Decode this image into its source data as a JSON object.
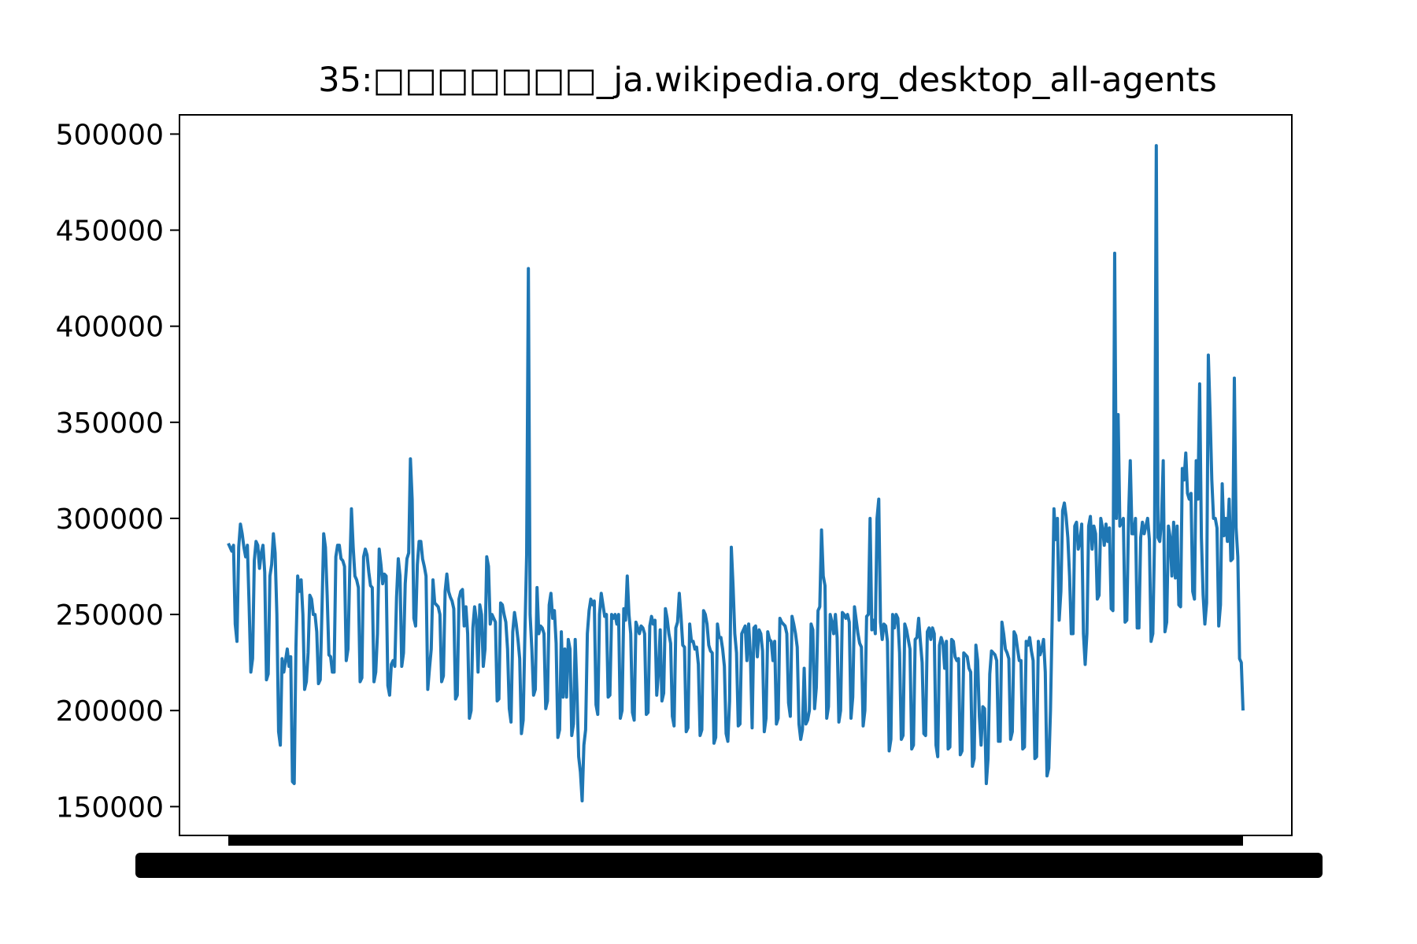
{
  "chart_data": {
    "type": "line",
    "title": "35:□□□□□□□_ja.wikipedia.org_desktop_all-agents",
    "xlabel": "",
    "ylabel": "",
    "ylim": [
      135000,
      510000
    ],
    "yticks": [
      150000,
      200000,
      250000,
      300000,
      350000,
      400000,
      450000,
      500000
    ],
    "ytick_labels": [
      "150000",
      "200000",
      "250000",
      "300000",
      "350000",
      "400000",
      "450000",
      "500000"
    ],
    "grid": false,
    "legend": "none",
    "line_color": "#1f77b4",
    "x_tick_labels_note": "tick labels overlap into an unreadable solid band",
    "series": [
      {
        "values": [
          287000,
          285000,
          283000,
          286000,
          245000,
          236000,
          285000,
          297000,
          292000,
          285000,
          280000,
          286000,
          255000,
          220000,
          227000,
          278000,
          288000,
          286000,
          274000,
          282000,
          286000,
          272000,
          216000,
          219000,
          270000,
          276000,
          292000,
          282000,
          250000,
          189000,
          182000,
          227000,
          220000,
          226000,
          232000,
          223000,
          228000,
          163000,
          162000,
          233000,
          270000,
          262000,
          268000,
          250000,
          211000,
          215000,
          230000,
          260000,
          258000,
          250000,
          250000,
          241000,
          214000,
          216000,
          252000,
          292000,
          285000,
          260000,
          229000,
          228000,
          220000,
          220000,
          280000,
          286000,
          286000,
          279000,
          278000,
          275000,
          226000,
          232000,
          272000,
          305000,
          285000,
          270000,
          268000,
          264000,
          215000,
          217000,
          280000,
          284000,
          281000,
          272000,
          265000,
          264000,
          215000,
          220000,
          240000,
          284000,
          276000,
          266000,
          271000,
          270000,
          213000,
          208000,
          224000,
          226000,
          223000,
          259000,
          279000,
          270000,
          223000,
          230000,
          266000,
          279000,
          282000,
          331000,
          310000,
          248000,
          244000,
          276000,
          288000,
          288000,
          279000,
          275000,
          270000,
          211000,
          222000,
          232000,
          268000,
          256000,
          255000,
          254000,
          250000,
          215000,
          218000,
          262000,
          271000,
          262000,
          259000,
          257000,
          253000,
          206000,
          208000,
          258000,
          262000,
          263000,
          244000,
          254000,
          240000,
          196000,
          200000,
          243000,
          254000,
          247000,
          220000,
          255000,
          250000,
          223000,
          232000,
          280000,
          275000,
          245000,
          250000,
          248000,
          246000,
          205000,
          206000,
          256000,
          255000,
          250000,
          246000,
          232000,
          201000,
          194000,
          241000,
          251000,
          245000,
          237000,
          227000,
          188000,
          195000,
          240000,
          281000,
          430000,
          250000,
          232000,
          208000,
          211000,
          264000,
          240000,
          244000,
          243000,
          240000,
          201000,
          205000,
          255000,
          261000,
          248000,
          252000,
          235000,
          186000,
          190000,
          241000,
          207000,
          232000,
          207000,
          237000,
          232000,
          187000,
          193000,
          237000,
          210000,
          176000,
          168000,
          153000,
          182000,
          190000,
          240000,
          252000,
          258000,
          255000,
          257000,
          203000,
          198000,
          250000,
          261000,
          255000,
          249000,
          250000,
          207000,
          208000,
          250000,
          248000,
          250000,
          245000,
          250000,
          196000,
          200000,
          253000,
          247000,
          270000,
          250000,
          240000,
          199000,
          195000,
          246000,
          243000,
          240000,
          244000,
          243000,
          240000,
          198000,
          199000,
          244000,
          249000,
          245000,
          247000,
          208000,
          220000,
          242000,
          205000,
          209000,
          253000,
          248000,
          240000,
          235000,
          197000,
          192000,
          243000,
          246000,
          261000,
          249000,
          234000,
          233000,
          189000,
          191000,
          245000,
          236000,
          236000,
          232000,
          233000,
          224000,
          187000,
          190000,
          252000,
          250000,
          245000,
          234000,
          231000,
          230000,
          183000,
          186000,
          245000,
          238000,
          238000,
          232000,
          223000,
          188000,
          184000,
          205000,
          285000,
          265000,
          240000,
          230000,
          192000,
          193000,
          240000,
          242000,
          244000,
          226000,
          245000,
          229000,
          191000,
          243000,
          244000,
          228000,
          242000,
          240000,
          231000,
          189000,
          196000,
          241000,
          237000,
          236000,
          226000,
          236000,
          193000,
          196000,
          248000,
          246000,
          245000,
          244000,
          240000,
          204000,
          197000,
          249000,
          245000,
          240000,
          233000,
          193000,
          185000,
          190000,
          222000,
          193000,
          195000,
          200000,
          245000,
          242000,
          201000,
          212000,
          252000,
          254000,
          294000,
          270000,
          265000,
          196000,
          202000,
          250000,
          246000,
          240000,
          250000,
          238000,
          194000,
          200000,
          251000,
          250000,
          248000,
          250000,
          246000,
          196000,
          207000,
          254000,
          247000,
          240000,
          235000,
          233000,
          192000,
          200000,
          249000,
          250000,
          300000,
          242000,
          247000,
          240000,
          300000,
          310000,
          246000,
          237000,
          245000,
          244000,
          236000,
          179000,
          185000,
          250000,
          243000,
          250000,
          248000,
          230000,
          185000,
          187000,
          245000,
          242000,
          237000,
          232000,
          180000,
          182000,
          237000,
          238000,
          248000,
          236000,
          225000,
          188000,
          187000,
          241000,
          243000,
          237000,
          243000,
          240000,
          182000,
          176000,
          234000,
          238000,
          235000,
          222000,
          236000,
          180000,
          181000,
          237000,
          236000,
          228000,
          226000,
          227000,
          177000,
          179000,
          230000,
          229000,
          228000,
          222000,
          220000,
          171000,
          175000,
          234000,
          226000,
          197000,
          182000,
          202000,
          201000,
          162000,
          175000,
          219000,
          231000,
          230000,
          229000,
          226000,
          184000,
          184000,
          246000,
          240000,
          232000,
          230000,
          227000,
          185000,
          189000,
          241000,
          239000,
          232000,
          226000,
          226000,
          180000,
          181000,
          236000,
          234000,
          238000,
          231000,
          226000,
          175000,
          176000,
          236000,
          229000,
          232000,
          237000,
          220000,
          166000,
          170000,
          200000,
          249000,
          305000,
          289000,
          300000,
          247000,
          262000,
          304000,
          308000,
          301000,
          290000,
          270000,
          240000,
          240000,
          296000,
          298000,
          284000,
          288000,
          297000,
          240000,
          224000,
          240000,
          296000,
          301000,
          284000,
          296000,
          292000,
          258000,
          260000,
          300000,
          295000,
          286000,
          297000,
          288000,
          295000,
          253000,
          252000,
          438000,
          300000,
          354000,
          296000,
          298000,
          300000,
          246000,
          247000,
          300000,
          330000,
          292000,
          292000,
          300000,
          243000,
          243000,
          290000,
          298000,
          292000,
          296000,
          300000,
          289000,
          236000,
          240000,
          290000,
          494000,
          290000,
          288000,
          299000,
          330000,
          241000,
          246000,
          296000,
          290000,
          270000,
          298000,
          269000,
          296000,
          255000,
          254000,
          326000,
          320000,
          334000,
          313000,
          310000,
          313000,
          262000,
          258000,
          330000,
          310000,
          370000,
          290000,
          260000,
          245000,
          256000,
          385000,
          355000,
          320000,
          300000,
          300000,
          295000,
          244000,
          255000,
          318000,
          291000,
          300000,
          288000,
          310000,
          278000,
          279000,
          373000,
          295000,
          280000,
          227000,
          225000,
          200000
        ]
      }
    ]
  }
}
